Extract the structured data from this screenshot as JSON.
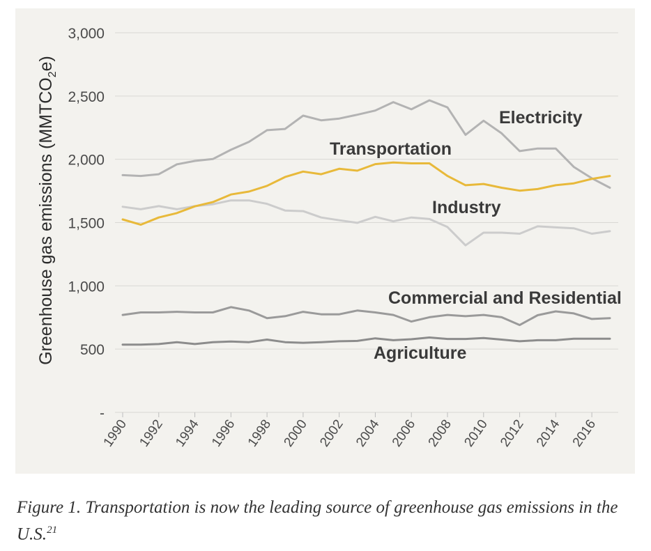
{
  "chart_data": {
    "type": "line",
    "ylabel_prefix": "Greenhouse gas emissions (MMTCO",
    "ylabel_sub": "2",
    "ylabel_suffix": "e)",
    "xlabel": "",
    "ylim": [
      0,
      3000
    ],
    "y_ticks": [
      {
        "value": 0,
        "label": "-"
      },
      {
        "value": 500,
        "label": "500"
      },
      {
        "value": 1000,
        "label": "1,000"
      },
      {
        "value": 1500,
        "label": "1,500"
      },
      {
        "value": 2000,
        "label": "2,000"
      },
      {
        "value": 2500,
        "label": "2,500"
      },
      {
        "value": 3000,
        "label": "3,000"
      }
    ],
    "x": [
      1990,
      1991,
      1992,
      1993,
      1994,
      1995,
      1996,
      1997,
      1998,
      1999,
      2000,
      2001,
      2002,
      2003,
      2004,
      2005,
      2006,
      2007,
      2008,
      2009,
      2010,
      2011,
      2012,
      2013,
      2014,
      2015,
      2016,
      2017
    ],
    "x_tick_labels": [
      "1990",
      "1992",
      "1994",
      "1996",
      "1998",
      "2000",
      "2002",
      "2004",
      "2006",
      "2008",
      "2010",
      "2012",
      "2014",
      "2016"
    ],
    "grid": true,
    "series": [
      {
        "name": "Electricity",
        "color": "#b3b3b3",
        "values": [
          1875,
          1868,
          1882,
          1960,
          1987,
          2002,
          2075,
          2138,
          2230,
          2240,
          2345,
          2308,
          2322,
          2352,
          2385,
          2452,
          2395,
          2466,
          2410,
          2193,
          2305,
          2205,
          2065,
          2085,
          2085,
          1940,
          1850,
          1775
        ]
      },
      {
        "name": "Transportation",
        "color": "#e8b93a",
        "values": [
          1525,
          1483,
          1540,
          1575,
          1628,
          1662,
          1722,
          1745,
          1790,
          1860,
          1903,
          1882,
          1925,
          1910,
          1962,
          1975,
          1968,
          1968,
          1868,
          1795,
          1805,
          1775,
          1752,
          1765,
          1795,
          1810,
          1845,
          1868
        ]
      },
      {
        "name": "Industry",
        "color": "#cccccc",
        "values": [
          1625,
          1605,
          1630,
          1605,
          1630,
          1645,
          1675,
          1675,
          1648,
          1595,
          1590,
          1540,
          1518,
          1498,
          1545,
          1510,
          1540,
          1528,
          1465,
          1320,
          1420,
          1420,
          1412,
          1470,
          1462,
          1455,
          1412,
          1432
        ]
      },
      {
        "name": "Commercial and Residential",
        "color": "#9a9a9a",
        "values": [
          770,
          790,
          790,
          795,
          790,
          790,
          832,
          805,
          745,
          760,
          795,
          775,
          775,
          805,
          790,
          770,
          718,
          752,
          770,
          760,
          770,
          752,
          690,
          768,
          798,
          782,
          738,
          745
        ]
      },
      {
        "name": "Agriculture",
        "color": "#8c8c8c",
        "values": [
          535,
          535,
          540,
          555,
          540,
          555,
          560,
          555,
          575,
          555,
          550,
          555,
          562,
          565,
          585,
          570,
          578,
          592,
          580,
          580,
          588,
          575,
          562,
          570,
          570,
          582,
          582,
          582
        ]
      }
    ]
  },
  "caption": {
    "text": "Figure 1. Transportation is now the leading source of greenhouse gas emissions in the U.S.",
    "ref": "21"
  }
}
